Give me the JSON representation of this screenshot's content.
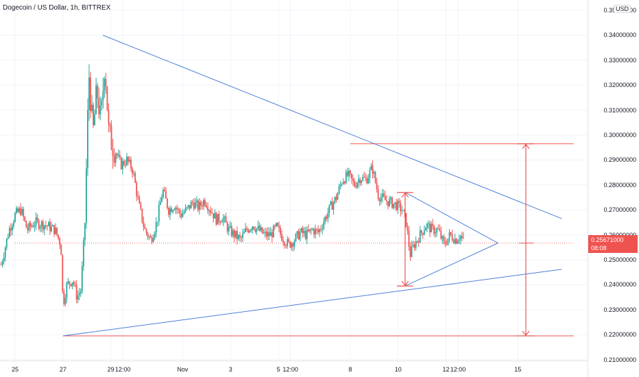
{
  "header": {
    "title": "Dogecoin / US Dollar, 1h, BITTREX",
    "currency": "USD"
  },
  "price_axis": {
    "ticks": [
      "0.35000000",
      "0.34000000",
      "0.33000000",
      "0.32000000",
      "0.31000000",
      "0.30000000",
      "0.29000000",
      "0.28000000",
      "0.27000000",
      "0.26000000",
      "0.25000000",
      "0.24000000",
      "0.23000000",
      "0.22000000",
      "0.21000000"
    ],
    "tick_values": [
      0.35,
      0.34,
      0.33,
      0.32,
      0.31,
      0.3,
      0.29,
      0.28,
      0.27,
      0.26,
      0.25,
      0.24,
      0.23,
      0.22,
      0.21
    ],
    "last_price": "0.25671000",
    "countdown": "08:08"
  },
  "time_axis": {
    "ticks": [
      "25",
      "27",
      "29",
      "12:00",
      "Nov",
      "3",
      "5",
      "12:00",
      "8",
      "10",
      "12",
      "12:00",
      "15"
    ],
    "tick_hours": [
      0,
      48,
      96,
      108,
      168,
      216,
      264,
      276,
      336,
      384,
      432,
      444,
      504
    ]
  },
  "colors": {
    "up": "#26a69a",
    "down": "#ef5350",
    "trendline": "#4a7fd8",
    "level": "#ef5350",
    "last_price_badge": "#ef5350"
  },
  "drawings": {
    "trendlines": [
      {
        "name": "upper-trendline",
        "from": {
          "hour": 88,
          "price": 0.34
        },
        "to": {
          "hour": 548,
          "price": 0.2665
        }
      },
      {
        "name": "lower-trendline",
        "from": {
          "hour": 48,
          "price": 0.2195
        },
        "to": {
          "hour": 548,
          "price": 0.2462
        }
      },
      {
        "name": "triangle-upper",
        "from": {
          "hour": 391,
          "price": 0.277
        },
        "to": {
          "hour": 484,
          "price": 0.2567
        }
      },
      {
        "name": "triangle-lower",
        "from": {
          "hour": 391,
          "price": 0.2395
        },
        "to": {
          "hour": 484,
          "price": 0.2567
        }
      }
    ],
    "levels": [
      {
        "name": "resistance-level",
        "price": 0.2965,
        "from_hour": 336,
        "to_hour": 560
      },
      {
        "name": "support-level",
        "price": 0.2195,
        "from_hour": 48,
        "to_hour": 560
      },
      {
        "name": "last-price-line",
        "price": 0.25671,
        "from_hour": 0,
        "to_hour": 560,
        "dotted": true
      },
      {
        "name": "target-level",
        "price": 0.2567,
        "from_hour": 505,
        "to_hour": 520
      }
    ],
    "measure_arrows": [
      {
        "name": "triangle-height-arrow",
        "hour": 391,
        "from_price": 0.2395,
        "to_price": 0.277
      },
      {
        "name": "projection-arrow",
        "hour": 512,
        "from_price": 0.2195,
        "to_price": 0.2965
      }
    ]
  },
  "chart_data": {
    "type": "candlestick",
    "y_range": [
      0.205,
      0.355
    ],
    "x_range_hours": [
      -14,
      550
    ],
    "interval": "1h",
    "price_path": [
      [
        -14,
        0.248
      ],
      [
        -6,
        0.262
      ],
      [
        0,
        0.268
      ],
      [
        6,
        0.27
      ],
      [
        12,
        0.262
      ],
      [
        20,
        0.265
      ],
      [
        30,
        0.264
      ],
      [
        40,
        0.262
      ],
      [
        46,
        0.256
      ],
      [
        48,
        0.232
      ],
      [
        52,
        0.24
      ],
      [
        58,
        0.242
      ],
      [
        62,
        0.235
      ],
      [
        66,
        0.238
      ],
      [
        70,
        0.265
      ],
      [
        74,
        0.325
      ],
      [
        78,
        0.3
      ],
      [
        82,
        0.318
      ],
      [
        86,
        0.305
      ],
      [
        90,
        0.33
      ],
      [
        94,
        0.3
      ],
      [
        100,
        0.294
      ],
      [
        106,
        0.288
      ],
      [
        112,
        0.29
      ],
      [
        118,
        0.286
      ],
      [
        124,
        0.272
      ],
      [
        130,
        0.262
      ],
      [
        136,
        0.258
      ],
      [
        142,
        0.265
      ],
      [
        148,
        0.278
      ],
      [
        154,
        0.27
      ],
      [
        160,
        0.272
      ],
      [
        166,
        0.268
      ],
      [
        172,
        0.27
      ],
      [
        178,
        0.273
      ],
      [
        184,
        0.271
      ],
      [
        190,
        0.274
      ],
      [
        196,
        0.27
      ],
      [
        202,
        0.266
      ],
      [
        208,
        0.267
      ],
      [
        214,
        0.262
      ],
      [
        220,
        0.26
      ],
      [
        226,
        0.258
      ],
      [
        232,
        0.262
      ],
      [
        238,
        0.264
      ],
      [
        244,
        0.262
      ],
      [
        250,
        0.26
      ],
      [
        256,
        0.26
      ],
      [
        262,
        0.263
      ],
      [
        268,
        0.259
      ],
      [
        274,
        0.256
      ],
      [
        280,
        0.258
      ],
      [
        286,
        0.261
      ],
      [
        292,
        0.26
      ],
      [
        298,
        0.262
      ],
      [
        304,
        0.261
      ],
      [
        310,
        0.266
      ],
      [
        316,
        0.271
      ],
      [
        322,
        0.275
      ],
      [
        328,
        0.282
      ],
      [
        334,
        0.284
      ],
      [
        340,
        0.28
      ],
      [
        346,
        0.283
      ],
      [
        352,
        0.282
      ],
      [
        358,
        0.287
      ],
      [
        364,
        0.276
      ],
      [
        370,
        0.274
      ],
      [
        376,
        0.273
      ],
      [
        382,
        0.272
      ],
      [
        388,
        0.27
      ],
      [
        392,
        0.265
      ],
      [
        396,
        0.252
      ],
      [
        400,
        0.256
      ],
      [
        406,
        0.26
      ],
      [
        412,
        0.264
      ],
      [
        418,
        0.262
      ],
      [
        424,
        0.262
      ],
      [
        430,
        0.256
      ],
      [
        436,
        0.26
      ],
      [
        442,
        0.258
      ],
      [
        446,
        0.26
      ],
      [
        450,
        0.257
      ]
    ]
  }
}
